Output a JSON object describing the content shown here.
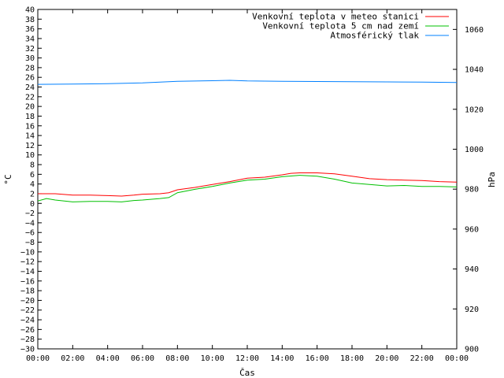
{
  "chart_data": {
    "type": "line",
    "xlabel": "Čas",
    "ylabel": "°C",
    "y2label": "hPa",
    "x_ticks": [
      "00:00",
      "02:00",
      "04:00",
      "06:00",
      "08:00",
      "10:00",
      "12:00",
      "14:00",
      "16:00",
      "18:00",
      "20:00",
      "22:00",
      "00:00"
    ],
    "x_hours": [
      0,
      2,
      4,
      6,
      8,
      10,
      12,
      14,
      16,
      18,
      20,
      22,
      24
    ],
    "ylim": [
      -30,
      40
    ],
    "y_step": 2,
    "y2lim": [
      900,
      1070
    ],
    "y2_ticks": [
      900,
      920,
      940,
      960,
      980,
      1000,
      1020,
      1040,
      1060
    ],
    "grid": false,
    "legend_position": "top-right",
    "series": [
      {
        "name": "Venkovní teplota v meteo stanici",
        "color": "#ff0000",
        "axis": "left",
        "x": [
          0,
          1,
          2,
          3,
          4,
          4.8,
          5.5,
          6,
          7,
          7.5,
          8,
          9,
          10,
          11,
          12,
          13,
          14,
          14.5,
          15,
          16,
          17,
          18,
          19,
          20,
          21,
          22,
          23,
          24
        ],
        "y": [
          2.0,
          2.0,
          1.7,
          1.7,
          1.6,
          1.5,
          1.7,
          1.9,
          2.0,
          2.2,
          2.8,
          3.3,
          3.9,
          4.5,
          5.2,
          5.4,
          5.9,
          6.2,
          6.3,
          6.3,
          6.1,
          5.6,
          5.1,
          4.9,
          4.8,
          4.7,
          4.5,
          4.4
        ]
      },
      {
        "name": "Venkovní teplota 5 cm nad zemí",
        "color": "#00c000",
        "axis": "left",
        "x": [
          0,
          0.5,
          1,
          2,
          3,
          4,
          4.8,
          5.5,
          6,
          7,
          7.5,
          8,
          9,
          10,
          11,
          12,
          13,
          14,
          15,
          16,
          17,
          18,
          19,
          20,
          21,
          22,
          23,
          24
        ],
        "y": [
          0.5,
          1.0,
          0.7,
          0.3,
          0.4,
          0.4,
          0.3,
          0.6,
          0.7,
          1.0,
          1.2,
          2.2,
          2.9,
          3.5,
          4.2,
          4.8,
          5.0,
          5.5,
          5.8,
          5.6,
          5.0,
          4.2,
          3.9,
          3.6,
          3.7,
          3.5,
          3.5,
          3.4
        ]
      },
      {
        "name": "Atmosférický tlak",
        "color": "#0080ff",
        "axis": "right",
        "x": [
          0,
          2,
          4,
          6,
          8,
          10,
          11,
          12,
          14,
          16,
          18,
          20,
          22,
          24
        ],
        "y": [
          1032.5,
          1032.6,
          1032.8,
          1033.2,
          1034.0,
          1034.3,
          1034.5,
          1034.2,
          1034.0,
          1033.9,
          1033.8,
          1033.7,
          1033.6,
          1033.4
        ]
      }
    ]
  }
}
